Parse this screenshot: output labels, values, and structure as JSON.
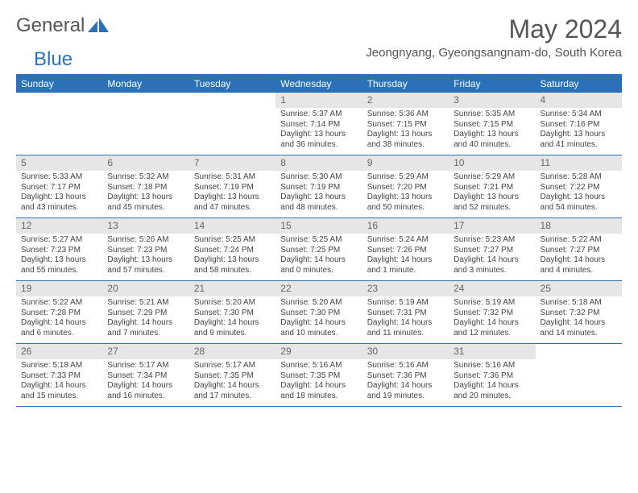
{
  "brand": {
    "general": "General",
    "blue": "Blue"
  },
  "title": "May 2024",
  "location": "Jeongnyang, Gyeongsangnam-do, South Korea",
  "colors": {
    "header_bg": "#2a71b8",
    "header_text": "#ffffff",
    "daynum_bg": "#e6e6e6",
    "daynum_text": "#666666",
    "body_text": "#444444",
    "border": "#2a71b8",
    "page_bg": "#ffffff"
  },
  "typography": {
    "title_fontsize": 32,
    "location_fontsize": 15,
    "header_fontsize": 12,
    "daynum_fontsize": 12,
    "cell_fontsize": 10
  },
  "day_labels": [
    "Sunday",
    "Monday",
    "Tuesday",
    "Wednesday",
    "Thursday",
    "Friday",
    "Saturday"
  ],
  "weeks": [
    [
      null,
      null,
      null,
      {
        "n": "1",
        "sunrise": "5:37 AM",
        "sunset": "7:14 PM",
        "daylight": "13 hours and 36 minutes."
      },
      {
        "n": "2",
        "sunrise": "5:36 AM",
        "sunset": "7:15 PM",
        "daylight": "13 hours and 38 minutes."
      },
      {
        "n": "3",
        "sunrise": "5:35 AM",
        "sunset": "7:15 PM",
        "daylight": "13 hours and 40 minutes."
      },
      {
        "n": "4",
        "sunrise": "5:34 AM",
        "sunset": "7:16 PM",
        "daylight": "13 hours and 41 minutes."
      }
    ],
    [
      {
        "n": "5",
        "sunrise": "5:33 AM",
        "sunset": "7:17 PM",
        "daylight": "13 hours and 43 minutes."
      },
      {
        "n": "6",
        "sunrise": "5:32 AM",
        "sunset": "7:18 PM",
        "daylight": "13 hours and 45 minutes."
      },
      {
        "n": "7",
        "sunrise": "5:31 AM",
        "sunset": "7:19 PM",
        "daylight": "13 hours and 47 minutes."
      },
      {
        "n": "8",
        "sunrise": "5:30 AM",
        "sunset": "7:19 PM",
        "daylight": "13 hours and 48 minutes."
      },
      {
        "n": "9",
        "sunrise": "5:29 AM",
        "sunset": "7:20 PM",
        "daylight": "13 hours and 50 minutes."
      },
      {
        "n": "10",
        "sunrise": "5:29 AM",
        "sunset": "7:21 PM",
        "daylight": "13 hours and 52 minutes."
      },
      {
        "n": "11",
        "sunrise": "5:28 AM",
        "sunset": "7:22 PM",
        "daylight": "13 hours and 54 minutes."
      }
    ],
    [
      {
        "n": "12",
        "sunrise": "5:27 AM",
        "sunset": "7:23 PM",
        "daylight": "13 hours and 55 minutes."
      },
      {
        "n": "13",
        "sunrise": "5:26 AM",
        "sunset": "7:23 PM",
        "daylight": "13 hours and 57 minutes."
      },
      {
        "n": "14",
        "sunrise": "5:25 AM",
        "sunset": "7:24 PM",
        "daylight": "13 hours and 58 minutes."
      },
      {
        "n": "15",
        "sunrise": "5:25 AM",
        "sunset": "7:25 PM",
        "daylight": "14 hours and 0 minutes."
      },
      {
        "n": "16",
        "sunrise": "5:24 AM",
        "sunset": "7:26 PM",
        "daylight": "14 hours and 1 minute."
      },
      {
        "n": "17",
        "sunrise": "5:23 AM",
        "sunset": "7:27 PM",
        "daylight": "14 hours and 3 minutes."
      },
      {
        "n": "18",
        "sunrise": "5:22 AM",
        "sunset": "7:27 PM",
        "daylight": "14 hours and 4 minutes."
      }
    ],
    [
      {
        "n": "19",
        "sunrise": "5:22 AM",
        "sunset": "7:28 PM",
        "daylight": "14 hours and 6 minutes."
      },
      {
        "n": "20",
        "sunrise": "5:21 AM",
        "sunset": "7:29 PM",
        "daylight": "14 hours and 7 minutes."
      },
      {
        "n": "21",
        "sunrise": "5:20 AM",
        "sunset": "7:30 PM",
        "daylight": "14 hours and 9 minutes."
      },
      {
        "n": "22",
        "sunrise": "5:20 AM",
        "sunset": "7:30 PM",
        "daylight": "14 hours and 10 minutes."
      },
      {
        "n": "23",
        "sunrise": "5:19 AM",
        "sunset": "7:31 PM",
        "daylight": "14 hours and 11 minutes."
      },
      {
        "n": "24",
        "sunrise": "5:19 AM",
        "sunset": "7:32 PM",
        "daylight": "14 hours and 12 minutes."
      },
      {
        "n": "25",
        "sunrise": "5:18 AM",
        "sunset": "7:32 PM",
        "daylight": "14 hours and 14 minutes."
      }
    ],
    [
      {
        "n": "26",
        "sunrise": "5:18 AM",
        "sunset": "7:33 PM",
        "daylight": "14 hours and 15 minutes."
      },
      {
        "n": "27",
        "sunrise": "5:17 AM",
        "sunset": "7:34 PM",
        "daylight": "14 hours and 16 minutes."
      },
      {
        "n": "28",
        "sunrise": "5:17 AM",
        "sunset": "7:35 PM",
        "daylight": "14 hours and 17 minutes."
      },
      {
        "n": "29",
        "sunrise": "5:16 AM",
        "sunset": "7:35 PM",
        "daylight": "14 hours and 18 minutes."
      },
      {
        "n": "30",
        "sunrise": "5:16 AM",
        "sunset": "7:36 PM",
        "daylight": "14 hours and 19 minutes."
      },
      {
        "n": "31",
        "sunrise": "5:16 AM",
        "sunset": "7:36 PM",
        "daylight": "14 hours and 20 minutes."
      },
      null
    ]
  ]
}
